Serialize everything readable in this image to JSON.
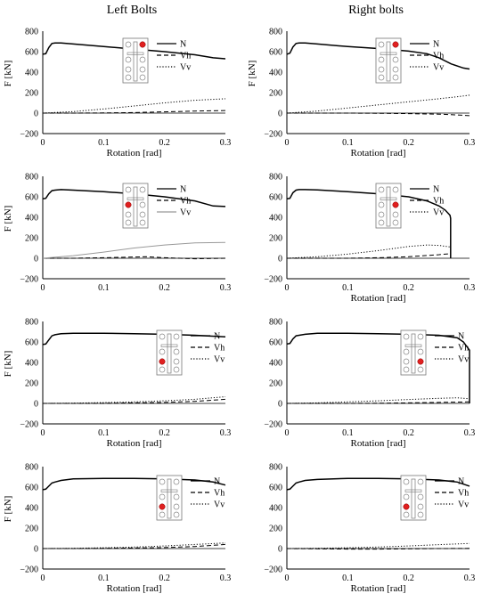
{
  "headers": {
    "left": "Left Bolts",
    "right": "Right bolts"
  },
  "chart_data": [
    {
      "type": "line",
      "panel": "left-1",
      "xlabel": "Rotation [rad]",
      "ylabel": "F [kN]",
      "xlim": [
        0,
        0.3
      ],
      "ylim": [
        -200,
        800
      ],
      "xticks": [
        "0",
        "0.1",
        "0.2",
        "0.3"
      ],
      "yticks": [
        "800",
        "600",
        "400",
        "200",
        "0",
        "−200"
      ],
      "legend": [
        "N",
        "Vh",
        "Vv"
      ],
      "highlight_bolt": "top-right",
      "series": [
        {
          "name": "N",
          "style": "solid",
          "color": "#000000",
          "x": [
            0,
            0.005,
            0.01,
            0.015,
            0.02,
            0.03,
            0.05,
            0.1,
            0.15,
            0.2,
            0.25,
            0.28,
            0.3
          ],
          "y": [
            575,
            580,
            640,
            680,
            685,
            685,
            675,
            650,
            625,
            600,
            570,
            540,
            530
          ]
        },
        {
          "name": "Vh",
          "style": "dashed",
          "color": "#000000",
          "x": [
            0,
            0.05,
            0.1,
            0.15,
            0.2,
            0.25,
            0.3
          ],
          "y": [
            0,
            0,
            2,
            5,
            12,
            20,
            25
          ]
        },
        {
          "name": "Vv",
          "style": "dotted",
          "color": "#000000",
          "x": [
            0,
            0.05,
            0.1,
            0.15,
            0.2,
            0.25,
            0.3
          ],
          "y": [
            0,
            15,
            40,
            70,
            100,
            125,
            140
          ]
        }
      ]
    },
    {
      "type": "line",
      "panel": "right-1",
      "xlabel": "Rotation [rad]",
      "ylabel": "F [kN]",
      "xlim": [
        0,
        0.3
      ],
      "ylim": [
        -200,
        800
      ],
      "xticks": [
        "0",
        "0.1",
        "0.2",
        "0.3"
      ],
      "yticks": [
        "800",
        "600",
        "400",
        "200",
        "0",
        "−200"
      ],
      "legend": [
        "N",
        "Vh",
        "Vv"
      ],
      "highlight_bolt": "top-right",
      "series": [
        {
          "name": "N",
          "style": "solid",
          "color": "#000000",
          "x": [
            0,
            0.005,
            0.01,
            0.015,
            0.02,
            0.03,
            0.05,
            0.1,
            0.15,
            0.2,
            0.23,
            0.25,
            0.27,
            0.29,
            0.3
          ],
          "y": [
            575,
            585,
            645,
            680,
            685,
            685,
            675,
            650,
            630,
            605,
            580,
            540,
            480,
            440,
            430
          ]
        },
        {
          "name": "Vh",
          "style": "dashed",
          "color": "#000000",
          "x": [
            0,
            0.05,
            0.1,
            0.15,
            0.2,
            0.25,
            0.28,
            0.3
          ],
          "y": [
            0,
            0,
            0,
            -2,
            -5,
            -10,
            -18,
            -25
          ]
        },
        {
          "name": "Vv",
          "style": "dotted",
          "color": "#000000",
          "x": [
            0,
            0.05,
            0.1,
            0.15,
            0.2,
            0.25,
            0.28,
            0.3
          ],
          "y": [
            0,
            20,
            50,
            80,
            110,
            140,
            160,
            175
          ]
        }
      ]
    },
    {
      "type": "line",
      "panel": "left-2",
      "xlabel": "",
      "ylabel": "F [kN]",
      "xlim": [
        0,
        0.3
      ],
      "ylim": [
        -200,
        800
      ],
      "xticks": [
        "0",
        "0.1",
        "0.2",
        "0.3"
      ],
      "yticks": [
        "800",
        "600",
        "400",
        "200",
        "0",
        "−200"
      ],
      "legend": [
        "N",
        "Vh",
        "Vv"
      ],
      "highlight_bolt": "upper-left",
      "series": [
        {
          "name": "N",
          "style": "solid",
          "color": "#000000",
          "x": [
            0,
            0.005,
            0.01,
            0.015,
            0.02,
            0.03,
            0.05,
            0.1,
            0.15,
            0.2,
            0.25,
            0.28,
            0.3
          ],
          "y": [
            580,
            585,
            630,
            660,
            665,
            670,
            665,
            650,
            630,
            600,
            560,
            510,
            505
          ]
        },
        {
          "name": "Vh",
          "style": "dashed",
          "color": "#000000",
          "x": [
            0,
            0.05,
            0.1,
            0.15,
            0.17,
            0.2,
            0.25,
            0.3
          ],
          "y": [
            0,
            0,
            5,
            12,
            15,
            5,
            -5,
            0
          ]
        },
        {
          "name": "Vv",
          "style": "solid",
          "color": "#999999",
          "x": [
            0,
            0.05,
            0.1,
            0.15,
            0.2,
            0.25,
            0.3
          ],
          "y": [
            0,
            25,
            60,
            100,
            130,
            150,
            155
          ]
        }
      ]
    },
    {
      "type": "line",
      "panel": "right-2",
      "xlabel": "Rotation [rad]",
      "ylabel": "",
      "xlim": [
        0,
        0.3
      ],
      "ylim": [
        -200,
        800
      ],
      "xticks": [
        "0",
        "0.1",
        "0.2",
        "0.3"
      ],
      "yticks": [
        "800",
        "600",
        "400",
        "200",
        "0",
        "−200"
      ],
      "legend": [
        "N",
        "Vh",
        "Vv"
      ],
      "highlight_bolt": "upper-right",
      "series": [
        {
          "name": "N",
          "style": "solid",
          "color": "#000000",
          "x": [
            0,
            0.005,
            0.01,
            0.015,
            0.02,
            0.03,
            0.05,
            0.1,
            0.15,
            0.2,
            0.23,
            0.25,
            0.26,
            0.268,
            0.269,
            0.269
          ],
          "y": [
            580,
            585,
            640,
            665,
            670,
            670,
            668,
            650,
            630,
            600,
            560,
            510,
            470,
            420,
            390,
            0
          ]
        },
        {
          "name": "Vh",
          "style": "dashed",
          "color": "#000000",
          "x": [
            0,
            0.05,
            0.1,
            0.15,
            0.2,
            0.25,
            0.269
          ],
          "y": [
            0,
            0,
            0,
            5,
            15,
            35,
            45
          ]
        },
        {
          "name": "Vv",
          "style": "dotted",
          "color": "#000000",
          "x": [
            0,
            0.05,
            0.1,
            0.15,
            0.2,
            0.23,
            0.25,
            0.269
          ],
          "y": [
            0,
            15,
            40,
            75,
            115,
            130,
            125,
            110
          ]
        }
      ]
    },
    {
      "type": "line",
      "panel": "left-3",
      "xlabel": "Rotation [rad]",
      "ylabel": "F [kN]",
      "xlim": [
        0,
        0.3
      ],
      "ylim": [
        -200,
        800
      ],
      "xticks": [
        "0",
        "0.1",
        "0.2",
        "0.3"
      ],
      "yticks": [
        "800",
        "600",
        "400",
        "200",
        "0",
        "−200"
      ],
      "legend": [
        "N",
        "Vh",
        "Vv"
      ],
      "highlight_bolt": "lower-left",
      "series": [
        {
          "name": "N",
          "style": "solid",
          "color": "#000000",
          "x": [
            0,
            0.005,
            0.01,
            0.015,
            0.02,
            0.03,
            0.05,
            0.1,
            0.15,
            0.2,
            0.25,
            0.3
          ],
          "y": [
            575,
            580,
            620,
            660,
            670,
            680,
            685,
            685,
            680,
            675,
            665,
            650
          ]
        },
        {
          "name": "Vh",
          "style": "dashed",
          "color": "#000000",
          "x": [
            0,
            0.05,
            0.1,
            0.15,
            0.2,
            0.25,
            0.3
          ],
          "y": [
            0,
            0,
            0,
            5,
            10,
            20,
            40
          ]
        },
        {
          "name": "Vv",
          "style": "dotted",
          "color": "#000000",
          "x": [
            0,
            0.05,
            0.1,
            0.15,
            0.2,
            0.25,
            0.3
          ],
          "y": [
            0,
            3,
            8,
            15,
            25,
            40,
            65
          ]
        }
      ]
    },
    {
      "type": "line",
      "panel": "right-3",
      "xlabel": "Rotation [rad]",
      "ylabel": "",
      "xlim": [
        0,
        0.3
      ],
      "ylim": [
        -200,
        800
      ],
      "xticks": [
        "0",
        "0.1",
        "0.2",
        "0.3"
      ],
      "yticks": [
        "800",
        "600",
        "400",
        "200",
        "0",
        "−200"
      ],
      "legend": [
        "N",
        "Vh",
        "Vv"
      ],
      "highlight_bolt": "lower-right",
      "series": [
        {
          "name": "N",
          "style": "solid",
          "color": "#000000",
          "x": [
            0,
            0.005,
            0.01,
            0.015,
            0.02,
            0.03,
            0.05,
            0.1,
            0.15,
            0.2,
            0.25,
            0.28,
            0.29,
            0.3,
            0.3
          ],
          "y": [
            580,
            585,
            630,
            660,
            665,
            675,
            685,
            685,
            680,
            675,
            665,
            640,
            600,
            520,
            0
          ]
        },
        {
          "name": "Vh",
          "style": "dashed",
          "color": "#000000",
          "x": [
            0,
            0.05,
            0.1,
            0.15,
            0.2,
            0.25,
            0.3
          ],
          "y": [
            0,
            0,
            0,
            2,
            5,
            10,
            15
          ]
        },
        {
          "name": "Vv",
          "style": "dotted",
          "color": "#000000",
          "x": [
            0,
            0.05,
            0.1,
            0.15,
            0.2,
            0.25,
            0.28,
            0.3
          ],
          "y": [
            0,
            5,
            15,
            25,
            38,
            50,
            55,
            45
          ]
        }
      ]
    },
    {
      "type": "line",
      "panel": "left-4",
      "xlabel": "Rotation [rad]",
      "ylabel": "F [kN]",
      "xlim": [
        0,
        0.3
      ],
      "ylim": [
        -200,
        800
      ],
      "xticks": [
        "0",
        "0.1",
        "0.2",
        "0.3"
      ],
      "yticks": [
        "800",
        "600",
        "400",
        "200",
        "0",
        "−200"
      ],
      "legend": [
        "N",
        "Vh",
        "Vv"
      ],
      "highlight_bolt": "lower-left",
      "series": [
        {
          "name": "N",
          "style": "solid",
          "color": "#000000",
          "x": [
            0,
            0.005,
            0.01,
            0.015,
            0.02,
            0.03,
            0.05,
            0.1,
            0.15,
            0.2,
            0.25,
            0.28,
            0.3
          ],
          "y": [
            575,
            580,
            610,
            640,
            650,
            665,
            680,
            685,
            685,
            680,
            670,
            650,
            620
          ]
        },
        {
          "name": "Vh",
          "style": "dashed",
          "color": "#000000",
          "x": [
            0,
            0.05,
            0.1,
            0.15,
            0.2,
            0.25,
            0.3
          ],
          "y": [
            0,
            0,
            2,
            5,
            10,
            20,
            40
          ]
        },
        {
          "name": "Vv",
          "style": "dotted",
          "color": "#000000",
          "x": [
            0,
            0.05,
            0.1,
            0.15,
            0.2,
            0.25,
            0.3
          ],
          "y": [
            0,
            3,
            8,
            15,
            25,
            40,
            55
          ]
        }
      ]
    },
    {
      "type": "line",
      "panel": "right-4",
      "xlabel": "Rotation [rad]",
      "ylabel": "",
      "xlim": [
        0,
        0.3
      ],
      "ylim": [
        -200,
        800
      ],
      "xticks": [
        "0",
        "0.1",
        "0.2",
        "0.3"
      ],
      "yticks": [
        "800",
        "600",
        "400",
        "200",
        "0",
        "−200"
      ],
      "legend": [
        "N",
        "Vh",
        "Vv"
      ],
      "highlight_bolt": "lower-left",
      "series": [
        {
          "name": "N",
          "style": "solid",
          "color": "#000000",
          "x": [
            0,
            0.005,
            0.01,
            0.015,
            0.02,
            0.03,
            0.05,
            0.1,
            0.15,
            0.2,
            0.25,
            0.28,
            0.3
          ],
          "y": [
            575,
            580,
            610,
            640,
            650,
            665,
            675,
            685,
            685,
            680,
            670,
            650,
            610
          ]
        },
        {
          "name": "Vh",
          "style": "dashed",
          "color": "#000000",
          "x": [
            0,
            0.05,
            0.1,
            0.15,
            0.2,
            0.25,
            0.3
          ],
          "y": [
            0,
            -3,
            -5,
            -5,
            -3,
            0,
            2
          ]
        },
        {
          "name": "Vv",
          "style": "dotted",
          "color": "#000000",
          "x": [
            0,
            0.05,
            0.1,
            0.15,
            0.2,
            0.25,
            0.3
          ],
          "y": [
            0,
            3,
            8,
            15,
            25,
            38,
            50
          ]
        }
      ]
    }
  ]
}
